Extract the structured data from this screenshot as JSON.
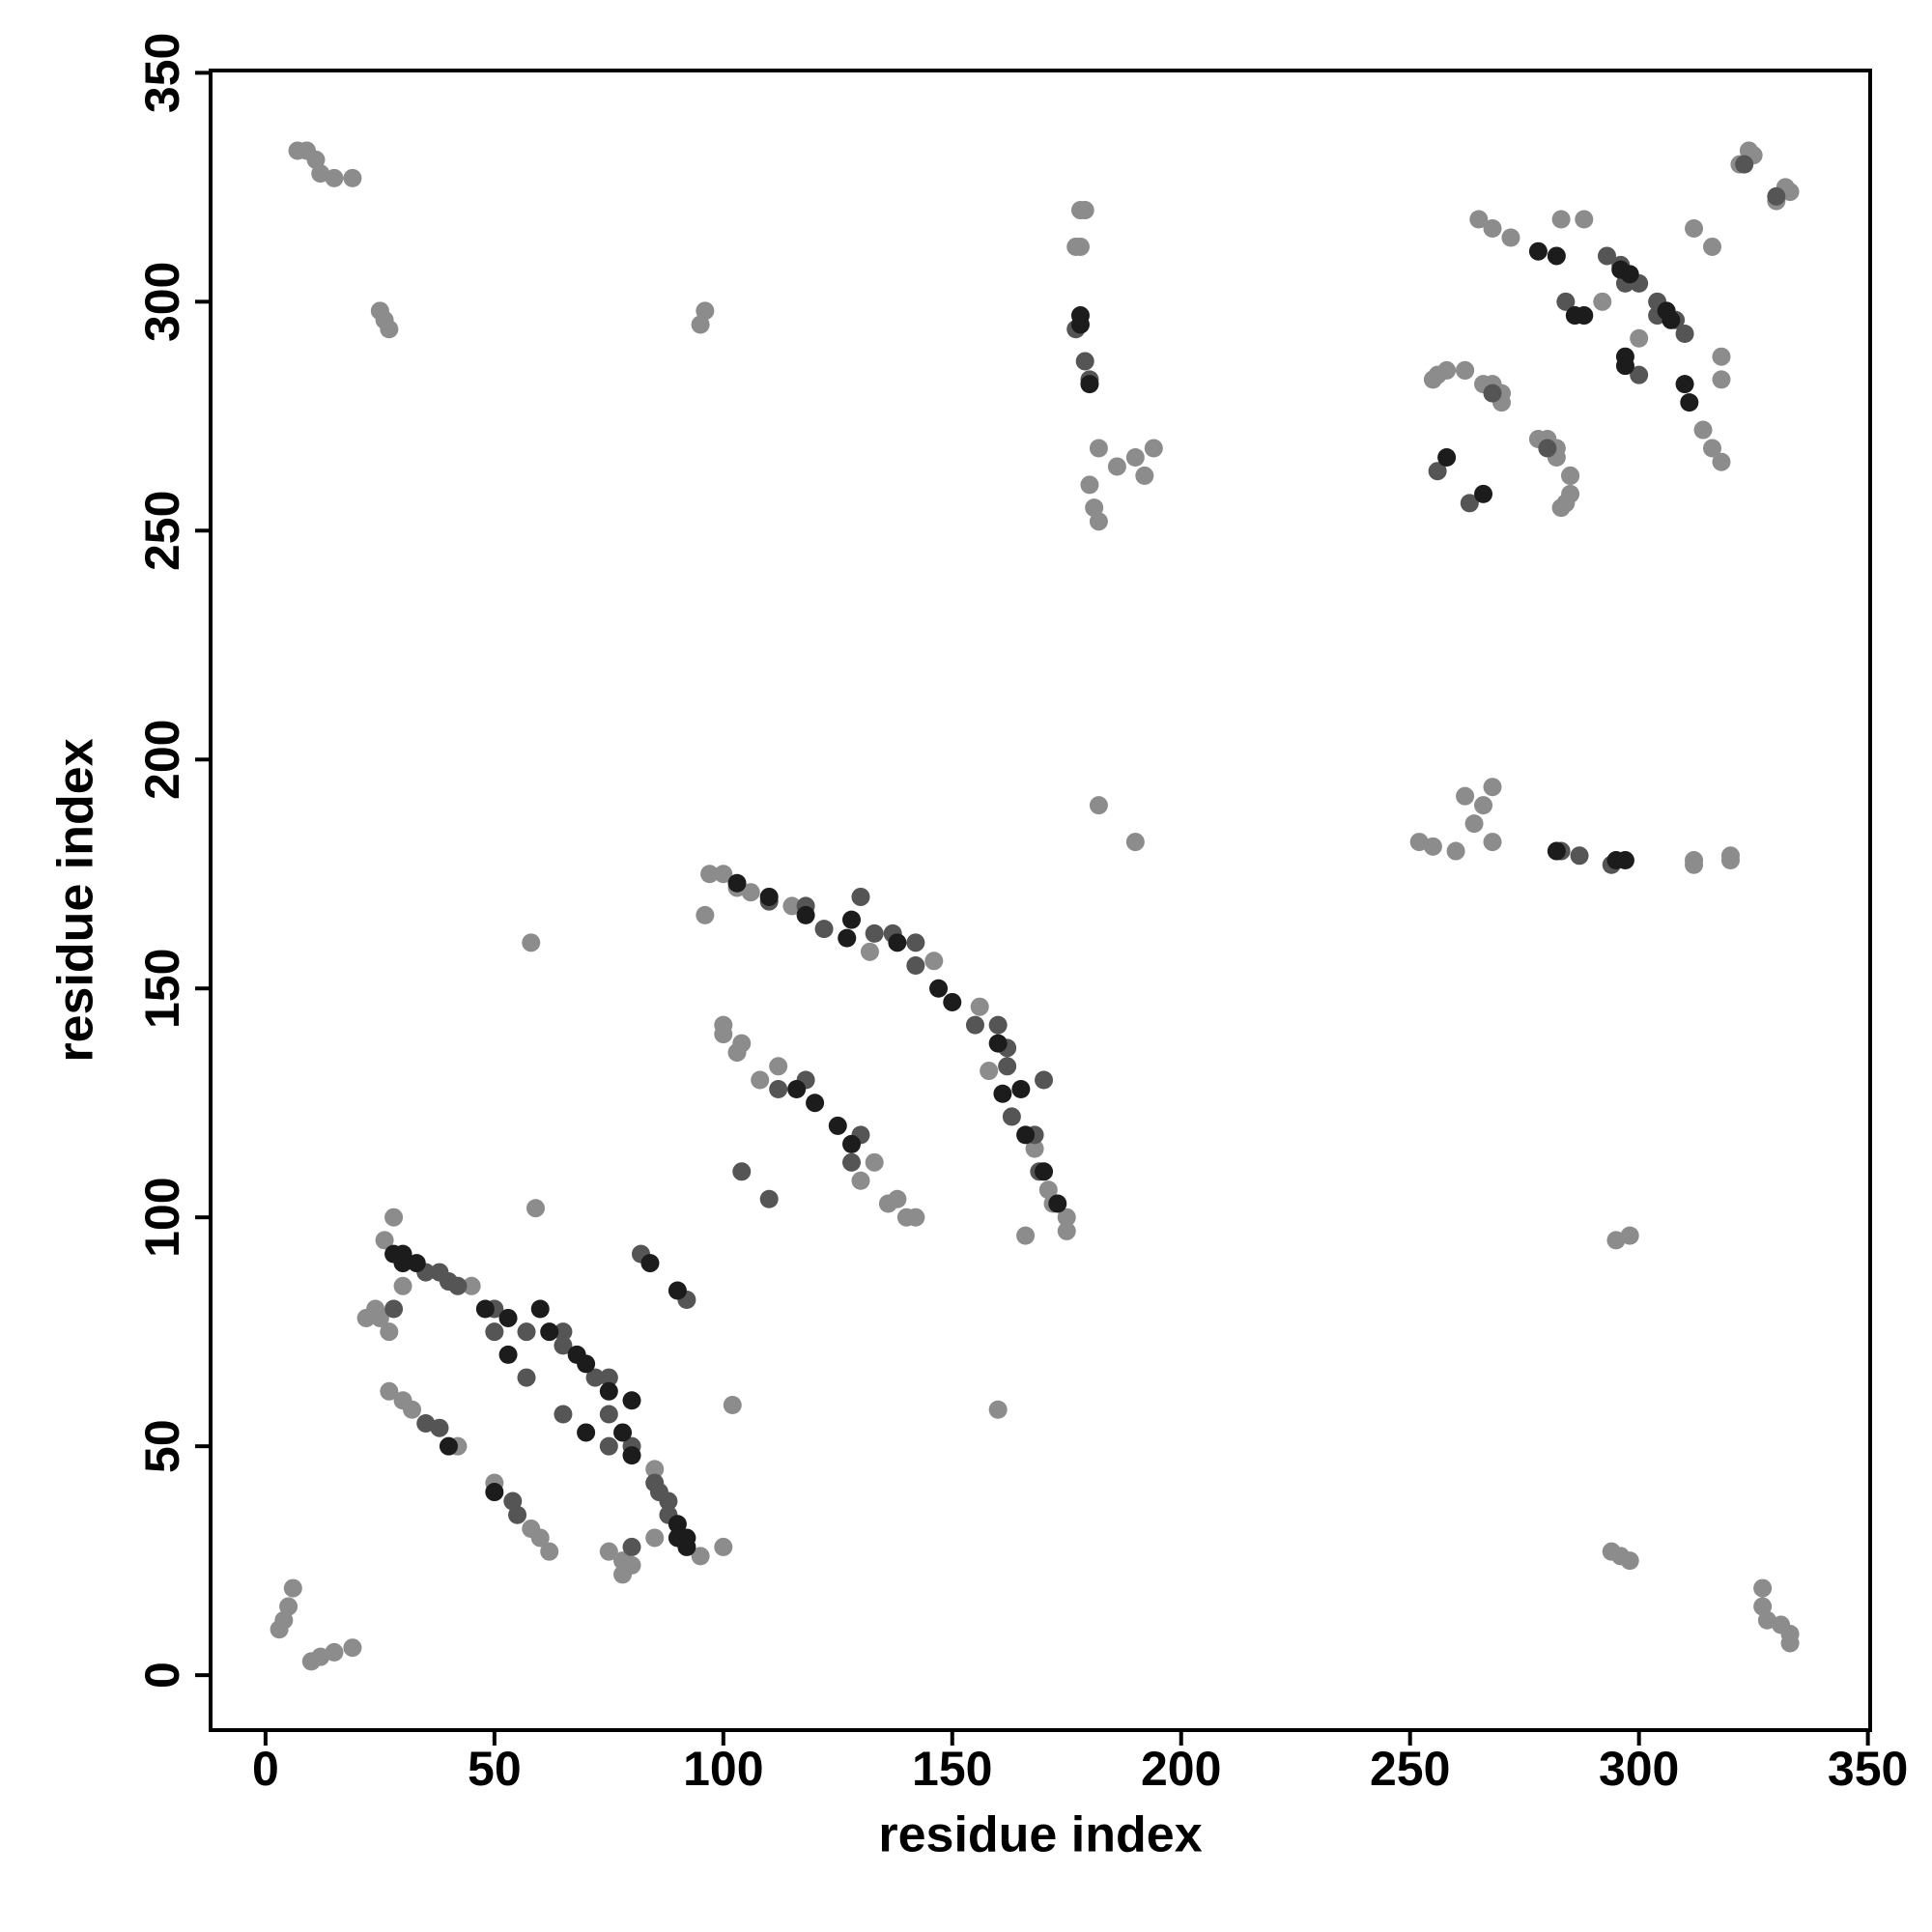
{
  "chart_data": {
    "type": "scatter",
    "x_label": "residue index",
    "y_label": "residue index",
    "xlim": [
      -12,
      350.5
    ],
    "ylim": [
      -12,
      350.5
    ],
    "xticks": [
      0,
      50,
      100,
      150,
      200,
      250,
      300,
      350
    ],
    "yticks": [
      0,
      50,
      100,
      150,
      200,
      250,
      300,
      350
    ],
    "series": [
      {
        "color": "#8c8c8c",
        "x": [
          4,
          5,
          6,
          3,
          7,
          9,
          11,
          12,
          15,
          19,
          25,
          26,
          27,
          95,
          96,
          177,
          178,
          252,
          255,
          260,
          262,
          264,
          266,
          268,
          268,
          312,
          320,
          265,
          268,
          272,
          283,
          288,
          292,
          322,
          325,
          333,
          316,
          255,
          258,
          262,
          266,
          270,
          278,
          282,
          285,
          284,
          100,
          106,
          115,
          132,
          146,
          100,
          103,
          108,
          133,
          138,
          142,
          175,
          172,
          22,
          27,
          24,
          27,
          32,
          42,
          78,
          85,
          95,
          100,
          58,
          59,
          166,
          182,
          60,
          45,
          12,
          15,
          19,
          10,
          333,
          333,
          331,
          328,
          327,
          327,
          298,
          296,
          294,
          295,
          298,
          312,
          320,
          182,
          181,
          180,
          192,
          186,
          190,
          194,
          182,
          178,
          179,
          318,
          316,
          314,
          318,
          318,
          300,
          330,
          332,
          324,
          312,
          283,
          285,
          285,
          282,
          280,
          270,
          268,
          262,
          256,
          175,
          171,
          168,
          158,
          156,
          140,
          136,
          130,
          112,
          104,
          100,
          97,
          103,
          78,
          75,
          80,
          62,
          58,
          50,
          25,
          30,
          26,
          28,
          160,
          102,
          96,
          190,
          30,
          85
        ],
        "values": [
          12,
          15,
          19,
          10,
          333,
          333,
          331,
          328,
          327,
          327,
          298,
          296,
          294,
          295,
          298,
          312,
          320,
          182,
          181,
          180,
          192,
          186,
          190,
          194,
          182,
          178,
          179,
          318,
          316,
          314,
          318,
          318,
          300,
          330,
          332,
          324,
          312,
          283,
          285,
          285,
          282,
          280,
          270,
          268,
          262,
          256,
          175,
          171,
          168,
          158,
          156,
          140,
          136,
          130,
          112,
          104,
          100,
          97,
          103,
          78,
          75,
          80,
          62,
          58,
          50,
          25,
          30,
          26,
          28,
          160,
          102,
          96,
          190,
          30,
          85,
          4,
          5,
          6,
          3,
          7,
          9,
          11,
          12,
          15,
          19,
          25,
          26,
          27,
          95,
          96,
          177,
          178,
          252,
          255,
          260,
          262,
          264,
          266,
          268,
          268,
          312,
          320,
          265,
          268,
          272,
          283,
          288,
          292,
          322,
          325,
          333,
          316,
          255,
          258,
          262,
          266,
          270,
          278,
          282,
          285,
          284,
          100,
          106,
          115,
          132,
          146,
          100,
          103,
          108,
          133,
          138,
          142,
          175,
          172,
          22,
          27,
          24,
          27,
          32,
          42,
          78,
          85,
          95,
          100,
          58,
          59,
          166,
          182,
          60,
          45
        ]
      },
      {
        "color": "#555555",
        "x": [
          179,
          180,
          294,
          284,
          296,
          300,
          304,
          310,
          268,
          256,
          330,
          110,
          122,
          137,
          142,
          130,
          155,
          162,
          168,
          112,
          118,
          35,
          40,
          50,
          57,
          65,
          75,
          38,
          65,
          75,
          85,
          88,
          80,
          55,
          110,
          82,
          287,
          283,
          177,
          300,
          308,
          304,
          297,
          293,
          280,
          263,
          323,
          169,
          163,
          162,
          160,
          170,
          142,
          133,
          118,
          128,
          130,
          88,
          86,
          80,
          75,
          72,
          65,
          54,
          57,
          50,
          42,
          38,
          28,
          35,
          104,
          92
        ],
        "values": [
          287,
          283,
          177,
          300,
          308,
          304,
          297,
          293,
          280,
          263,
          323,
          169,
          163,
          162,
          160,
          170,
          142,
          133,
          118,
          128,
          130,
          88,
          86,
          80,
          75,
          72,
          65,
          54,
          57,
          50,
          42,
          38,
          28,
          35,
          104,
          92,
          179,
          180,
          294,
          284,
          296,
          300,
          304,
          310,
          268,
          256,
          330,
          110,
          122,
          137,
          142,
          130,
          155,
          162,
          168,
          112,
          118,
          35,
          40,
          50,
          57,
          65,
          75,
          38,
          65,
          75,
          85,
          88,
          80,
          55,
          110,
          82
        ]
      },
      {
        "color": "#1c1c1c",
        "x": [
          178,
          282,
          297,
          278,
          282,
          286,
          288,
          298,
          307,
          258,
          103,
          118,
          127,
          150,
          160,
          165,
          170,
          125,
          128,
          28,
          30,
          53,
          62,
          70,
          80,
          70,
          80,
          90,
          92,
          50,
          90,
          295,
          180,
          178,
          311,
          310,
          297,
          297,
          306,
          296,
          266,
          173,
          166,
          161,
          147,
          138,
          128,
          110,
          120,
          116,
          92,
          90,
          78,
          75,
          68,
          60,
          53,
          48,
          33,
          30,
          40,
          84
        ],
        "values": [
          295,
          180,
          178,
          311,
          310,
          297,
          297,
          306,
          296,
          266,
          173,
          166,
          161,
          147,
          138,
          128,
          110,
          120,
          116,
          92,
          90,
          78,
          75,
          68,
          60,
          53,
          48,
          33,
          30,
          40,
          84,
          178,
          282,
          297,
          278,
          282,
          286,
          288,
          298,
          307,
          258,
          103,
          118,
          127,
          150,
          160,
          165,
          170,
          125,
          128,
          28,
          30,
          53,
          62,
          70,
          80,
          70,
          80,
          90,
          92,
          50,
          90
        ]
      }
    ]
  }
}
